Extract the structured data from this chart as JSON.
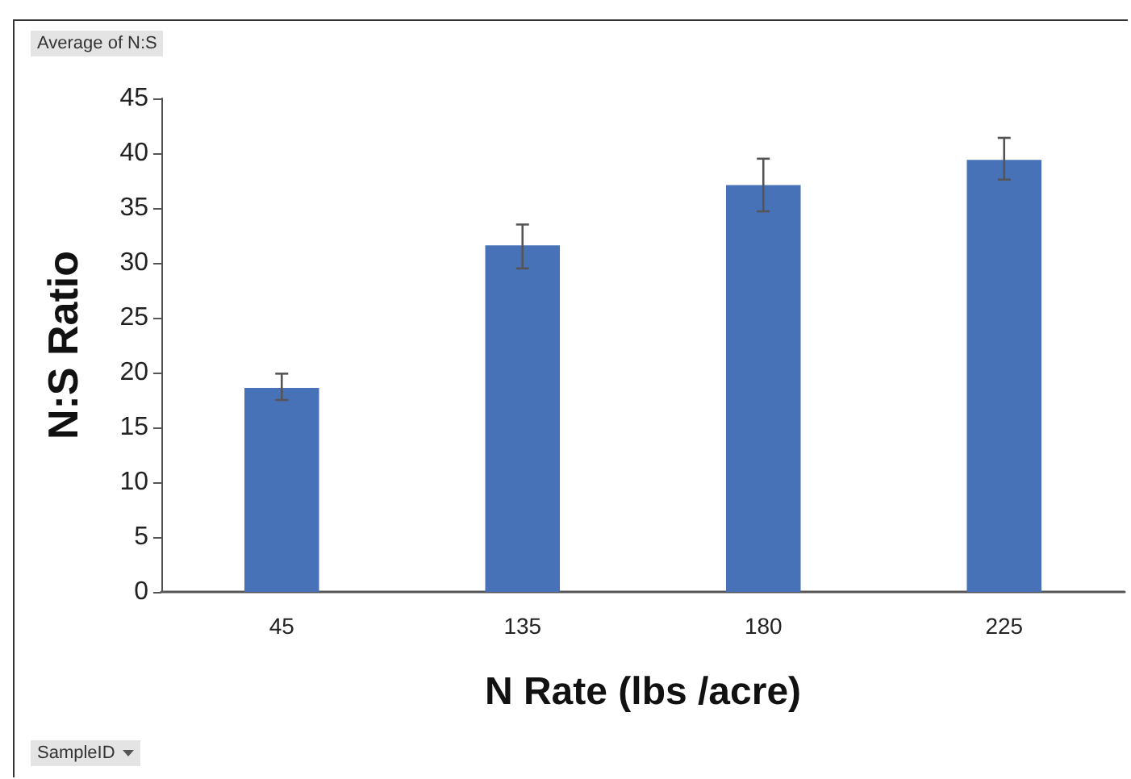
{
  "chart_data": {
    "type": "bar",
    "xlabel": "N Rate (lbs /acre)",
    "ylabel": "N:S Ratio",
    "categories": [
      "45",
      "135",
      "180",
      "225"
    ],
    "values": [
      18.6,
      31.6,
      37.1,
      39.4
    ],
    "errors": [
      [
        17.5,
        19.9
      ],
      [
        29.5,
        33.5
      ],
      [
        34.7,
        39.5
      ],
      [
        37.6,
        41.4
      ]
    ],
    "color": "#4872b8",
    "ylim": [
      0,
      45
    ],
    "yticks": [
      0,
      5,
      10,
      15,
      20,
      25,
      30,
      35,
      40,
      45
    ],
    "grid": false,
    "annotations": [
      "Average of N:S",
      "SampleID"
    ]
  }
}
